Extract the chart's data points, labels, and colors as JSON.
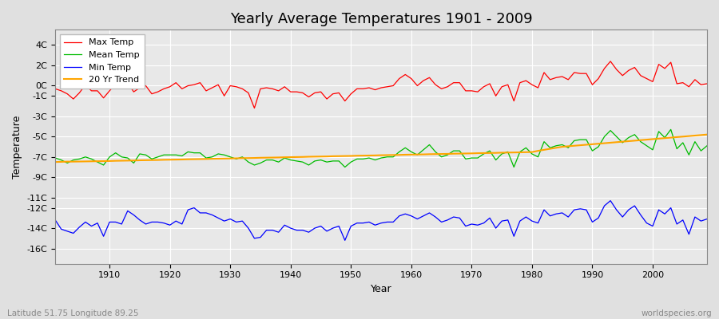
{
  "title": "Yearly Average Temperatures 1901 - 2009",
  "xlabel": "Year",
  "ylabel": "Temperature",
  "x_start": 1901,
  "x_end": 2009,
  "ylim": [
    -17.5,
    5.5
  ],
  "xlim": [
    1901,
    2009
  ],
  "bg_color": "#e0e0e0",
  "plot_bg_color": "#e8e8e8",
  "grid_color": "#ffffff",
  "max_color": "#ff0000",
  "mean_color": "#00bb00",
  "min_color": "#0000ff",
  "trend_color": "#ffa500",
  "footer_left": "Latitude 51.75 Longitude 89.25",
  "footer_right": "worldspecies.org",
  "legend_labels": [
    "Max Temp",
    "Mean Temp",
    "Min Temp",
    "20 Yr Trend"
  ],
  "max_temps": [
    -0.3,
    -0.5,
    -0.8,
    -1.3,
    -0.7,
    0.1,
    -0.5,
    -0.5,
    -1.2,
    -0.5,
    0.2,
    -0.3,
    0.3,
    -0.6,
    -0.2,
    0.0,
    -0.8,
    -0.6,
    -0.3,
    -0.1,
    0.3,
    -0.3,
    0.0,
    0.1,
    0.3,
    -0.5,
    -0.2,
    0.1,
    -1.0,
    0.0,
    -0.1,
    -0.3,
    -0.7,
    -2.2,
    -0.3,
    -0.2,
    -0.3,
    -0.5,
    -0.1,
    -0.6,
    -0.6,
    -0.7,
    -1.1,
    -0.7,
    -0.6,
    -1.3,
    -0.8,
    -0.7,
    -1.5,
    -0.8,
    -0.3,
    -0.3,
    -0.2,
    -0.4,
    -0.2,
    -0.1,
    0.0,
    0.7,
    1.1,
    0.7,
    -0.0,
    0.5,
    0.8,
    0.1,
    -0.3,
    -0.1,
    0.3,
    0.3,
    -0.5,
    -0.5,
    -0.6,
    -0.1,
    0.2,
    -1.0,
    -0.1,
    0.1,
    -1.5,
    0.3,
    0.5,
    0.1,
    -0.2,
    1.3,
    0.6,
    0.8,
    0.9,
    0.6,
    1.3,
    1.2,
    1.2,
    0.1,
    0.7,
    1.7,
    2.4,
    1.6,
    1.0,
    1.5,
    1.8,
    1.0,
    0.7,
    0.4,
    2.1,
    1.7,
    2.3,
    0.2,
    0.3,
    -0.1,
    0.6,
    0.1,
    0.2
  ],
  "mean_temps": [
    -7.1,
    -7.3,
    -7.6,
    -7.3,
    -7.2,
    -7.0,
    -7.2,
    -7.5,
    -7.8,
    -7.0,
    -6.6,
    -7.0,
    -7.1,
    -7.6,
    -6.7,
    -6.8,
    -7.2,
    -7.0,
    -6.8,
    -6.8,
    -6.8,
    -6.9,
    -6.5,
    -6.6,
    -6.6,
    -7.1,
    -7.0,
    -6.7,
    -6.8,
    -7.0,
    -7.2,
    -7.0,
    -7.5,
    -7.8,
    -7.6,
    -7.3,
    -7.3,
    -7.5,
    -7.1,
    -7.3,
    -7.4,
    -7.5,
    -7.8,
    -7.4,
    -7.3,
    -7.5,
    -7.4,
    -7.4,
    -8.0,
    -7.5,
    -7.2,
    -7.2,
    -7.1,
    -7.3,
    -7.1,
    -7.0,
    -7.0,
    -6.5,
    -6.1,
    -6.5,
    -6.8,
    -6.3,
    -5.8,
    -6.5,
    -7.0,
    -6.8,
    -6.4,
    -6.4,
    -7.2,
    -7.1,
    -7.1,
    -6.7,
    -6.4,
    -7.3,
    -6.7,
    -6.5,
    -8.0,
    -6.5,
    -6.1,
    -6.7,
    -7.0,
    -5.5,
    -6.1,
    -5.9,
    -5.8,
    -6.1,
    -5.4,
    -5.3,
    -5.3,
    -6.4,
    -6.0,
    -5.0,
    -4.4,
    -5.0,
    -5.6,
    -5.1,
    -4.8,
    -5.5,
    -5.9,
    -6.3,
    -4.5,
    -5.1,
    -4.3,
    -6.2,
    -5.6,
    -6.8,
    -5.5,
    -6.4,
    -5.9
  ],
  "min_temps": [
    -13.2,
    -14.1,
    -14.3,
    -14.5,
    -13.9,
    -13.4,
    -13.8,
    -13.5,
    -14.8,
    -13.4,
    -13.4,
    -13.6,
    -12.3,
    -12.7,
    -13.2,
    -13.6,
    -13.4,
    -13.4,
    -13.5,
    -13.7,
    -13.3,
    -13.6,
    -12.2,
    -12.0,
    -12.5,
    -12.5,
    -12.7,
    -13.0,
    -13.3,
    -13.1,
    -13.4,
    -13.3,
    -14.0,
    -15.0,
    -14.9,
    -14.2,
    -14.2,
    -14.4,
    -13.7,
    -14.0,
    -14.2,
    -14.2,
    -14.4,
    -14.0,
    -13.8,
    -14.3,
    -14.0,
    -13.8,
    -15.2,
    -13.8,
    -13.5,
    -13.5,
    -13.4,
    -13.7,
    -13.5,
    -13.4,
    -13.4,
    -12.8,
    -12.6,
    -12.8,
    -13.1,
    -12.8,
    -12.5,
    -12.9,
    -13.4,
    -13.2,
    -12.9,
    -13.0,
    -13.8,
    -13.6,
    -13.7,
    -13.5,
    -13.0,
    -14.0,
    -13.3,
    -13.2,
    -14.8,
    -13.3,
    -12.9,
    -13.3,
    -13.5,
    -12.2,
    -12.8,
    -12.6,
    -12.5,
    -12.9,
    -12.2,
    -12.1,
    -12.2,
    -13.4,
    -13.0,
    -11.8,
    -11.3,
    -12.2,
    -12.9,
    -12.2,
    -11.8,
    -12.7,
    -13.5,
    -13.8,
    -12.2,
    -12.6,
    -12.0,
    -13.6,
    -13.2,
    -14.6,
    -12.9,
    -13.3,
    -13.1
  ],
  "trend_temps": [
    -7.5,
    -7.48,
    -7.46,
    -7.46,
    -7.45,
    -7.44,
    -7.43,
    -7.42,
    -7.41,
    -7.4,
    -7.38,
    -7.37,
    -7.36,
    -7.35,
    -7.33,
    -7.32,
    -7.31,
    -7.3,
    -7.28,
    -7.27,
    -7.26,
    -7.25,
    -7.23,
    -7.22,
    -7.21,
    -7.2,
    -7.18,
    -7.17,
    -7.16,
    -7.15,
    -7.13,
    -7.12,
    -7.11,
    -7.1,
    -7.08,
    -7.07,
    -7.06,
    -7.05,
    -7.03,
    -7.02,
    -7.01,
    -7.0,
    -6.98,
    -6.97,
    -6.96,
    -6.95,
    -6.93,
    -6.92,
    -6.91,
    -6.9,
    -6.88,
    -6.87,
    -6.86,
    -6.85,
    -6.83,
    -6.82,
    -6.81,
    -6.8,
    -6.78,
    -6.77,
    -6.76,
    -6.75,
    -6.73,
    -6.72,
    -6.71,
    -6.7,
    -6.68,
    -6.67,
    -6.66,
    -6.65,
    -6.63,
    -6.62,
    -6.61,
    -6.6,
    -6.58,
    -6.57,
    -6.56,
    -6.55,
    -6.53,
    -6.52,
    -6.4,
    -6.3,
    -6.2,
    -6.1,
    -6.0,
    -5.95,
    -5.9,
    -5.85,
    -5.8,
    -5.75,
    -5.7,
    -5.65,
    -5.6,
    -5.55,
    -5.5,
    -5.45,
    -5.4,
    -5.35,
    -5.3,
    -5.25,
    -5.2,
    -5.15,
    -5.1,
    -5.05,
    -5.0,
    -4.95,
    -4.9,
    -4.85,
    -4.8
  ]
}
